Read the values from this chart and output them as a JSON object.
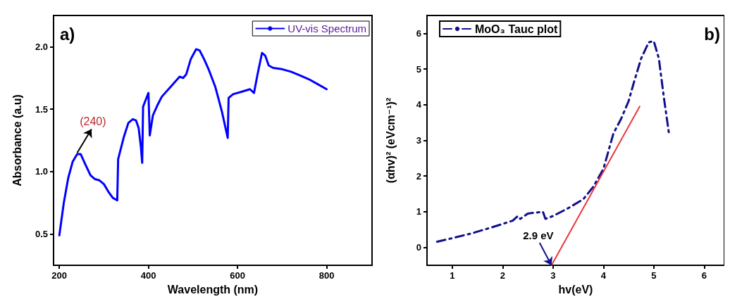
{
  "chart_data": [
    {
      "type": "line",
      "xlabel": "Wavelength (nm)",
      "ylabel": "Absorbance (a.u)",
      "xlim": [
        187,
        902
      ],
      "ylim": [
        0.25,
        2.25
      ],
      "xticks": [
        200,
        400,
        600,
        800
      ],
      "yticks": [
        {
          "value": 0.5,
          "label": "0.5"
        },
        {
          "value": 1,
          "label": "1.0"
        },
        {
          "value": 1.5,
          "label": "1.5"
        },
        {
          "value": 2,
          "label": "2.0"
        }
      ],
      "grid": false,
      "legend": "top right",
      "marker": "none",
      "annotations": [
        "a)",
        {
          "text": "(240)",
          "x": 240,
          "y": 1.15
        }
      ],
      "series": [
        {
          "name": "UV-vis Spectrum",
          "color": "#0000ff",
          "line_style": "solid",
          "x": [
            200,
            210,
            220,
            230,
            240,
            248,
            258,
            270,
            280,
            290,
            300,
            310,
            320,
            330,
            332,
            345,
            355,
            365,
            372,
            378,
            383,
            386,
            388,
            400,
            403,
            410,
            420,
            430,
            450,
            470,
            478,
            485,
            495,
            507,
            515,
            525,
            535,
            550,
            565,
            578,
            580,
            590,
            610,
            628,
            637,
            645,
            655,
            662,
            670,
            680,
            700,
            720,
            740,
            760,
            780,
            800
          ],
          "values": [
            0.49,
            0.75,
            0.95,
            1.08,
            1.14,
            1.14,
            1.06,
            0.97,
            0.94,
            0.93,
            0.9,
            0.84,
            0.79,
            0.77,
            1.1,
            1.28,
            1.39,
            1.42,
            1.41,
            1.35,
            1.2,
            1.07,
            1.52,
            1.63,
            1.29,
            1.45,
            1.53,
            1.6,
            1.68,
            1.76,
            1.75,
            1.78,
            1.9,
            1.98,
            1.97,
            1.9,
            1.82,
            1.68,
            1.48,
            1.27,
            1.59,
            1.62,
            1.64,
            1.66,
            1.63,
            1.78,
            1.95,
            1.93,
            1.85,
            1.83,
            1.82,
            1.8,
            1.77,
            1.74,
            1.7,
            1.66
          ]
        }
      ]
    },
    {
      "type": "line",
      "xlabel": "hv(eV)",
      "ylabel": "(αhv)² (eVcm⁻¹)²",
      "xlim": [
        0.5,
        6.4
      ],
      "ylim": [
        -0.5,
        6.5
      ],
      "xticks": [
        1,
        2,
        3,
        4,
        5,
        6
      ],
      "yticks": [
        0,
        1,
        2,
        3,
        4,
        5,
        6
      ],
      "grid": false,
      "legend": "top left",
      "marker": "none",
      "annotations": [
        "b)",
        {
          "text": "2.9 eV",
          "x": 2.97,
          "y": -0.5
        }
      ],
      "series": [
        {
          "name": "MoO₃ Tauc plot",
          "color": "#10108c",
          "line_style": "dashed",
          "x": [
            0.7,
            1.0,
            1.4,
            1.8,
            2.2,
            2.3,
            2.35,
            2.5,
            2.8,
            2.85,
            3.0,
            3.3,
            3.6,
            3.8,
            4.0,
            4.2,
            4.35,
            4.5,
            4.6,
            4.75,
            4.9,
            5.0,
            5.1,
            5.2,
            5.3
          ],
          "values": [
            0.16,
            0.26,
            0.4,
            0.57,
            0.75,
            0.88,
            0.8,
            0.95,
            1.0,
            0.8,
            0.88,
            1.1,
            1.35,
            1.7,
            2.2,
            3.2,
            3.6,
            4.1,
            4.6,
            5.3,
            5.75,
            5.78,
            5.3,
            4.2,
            3.2
          ]
        },
        {
          "color": "#e8383d",
          "line_style": "solid",
          "x": [
            2.97,
            4.72
          ],
          "values": [
            -0.5,
            3.95
          ]
        }
      ]
    }
  ]
}
